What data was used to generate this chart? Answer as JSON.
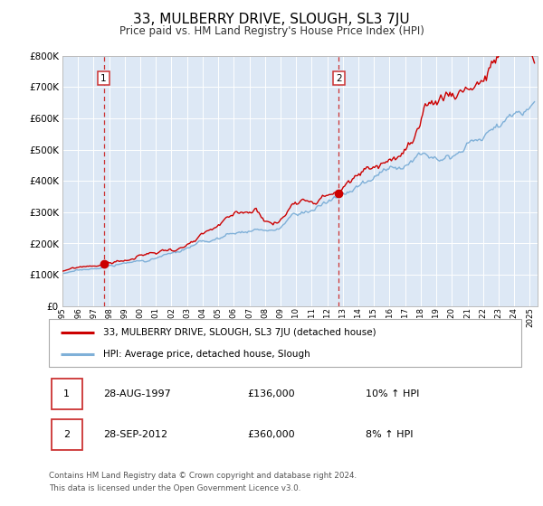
{
  "title": "33, MULBERRY DRIVE, SLOUGH, SL3 7JU",
  "subtitle": "Price paid vs. HM Land Registry's House Price Index (HPI)",
  "legend_line1": "33, MULBERRY DRIVE, SLOUGH, SL3 7JU (detached house)",
  "legend_line2": "HPI: Average price, detached house, Slough",
  "footnote1": "Contains HM Land Registry data © Crown copyright and database right 2024.",
  "footnote2": "This data is licensed under the Open Government Licence v3.0.",
  "sale1_date": "28-AUG-1997",
  "sale1_price": "£136,000",
  "sale1_hpi": "10% ↑ HPI",
  "sale2_date": "28-SEP-2012",
  "sale2_price": "£360,000",
  "sale2_hpi": "8% ↑ HPI",
  "sale1_year": 1997.646,
  "sale1_value": 136000,
  "sale2_year": 2012.747,
  "sale2_value": 360000,
  "vline1_year": 1997.646,
  "vline2_year": 2012.747,
  "red_line_color": "#cc0000",
  "blue_line_color": "#7fb0d8",
  "vline_color": "#cc3333",
  "background_color": "#dde8f5",
  "plot_bg_color": "#dde8f5",
  "ylim_min": 0,
  "ylim_max": 800000,
  "xlim_min": 1995.0,
  "xlim_max": 2025.5,
  "grid_color": "#ffffff",
  "title_fontsize": 11,
  "subtitle_fontsize": 8.5
}
